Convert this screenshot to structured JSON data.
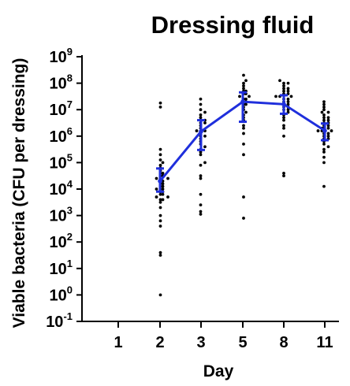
{
  "chart_data": {
    "type": "scatter",
    "title": "Dressing fluid",
    "xlabel": "Day",
    "ylabel": "Viable bacteria (CFU per dressing)",
    "y_scale": "log10",
    "ylim": [
      0.1,
      1000000000
    ],
    "y_ticks": [
      {
        "base": "10",
        "exp": "9",
        "value": 1000000000
      },
      {
        "base": "10",
        "exp": "8",
        "value": 100000000
      },
      {
        "base": "10",
        "exp": "7",
        "value": 10000000
      },
      {
        "base": "10",
        "exp": "6",
        "value": 1000000
      },
      {
        "base": "10",
        "exp": "5",
        "value": 100000
      },
      {
        "base": "10",
        "exp": "4",
        "value": 10000
      },
      {
        "base": "10",
        "exp": "3",
        "value": 1000
      },
      {
        "base": "10",
        "exp": "2",
        "value": 100
      },
      {
        "base": "10",
        "exp": "1",
        "value": 10
      },
      {
        "base": "10",
        "exp": "0",
        "value": 1
      },
      {
        "base": "10",
        "exp": "-1",
        "value": 0.1
      }
    ],
    "categories": [
      "1",
      "2",
      "3",
      "5",
      "8",
      "11"
    ],
    "grid": false,
    "legend": "none",
    "point_color": "#000000",
    "summary_color": "#1f2fdc",
    "points": [
      [],
      [
        0,
        1.6,
        2.6,
        2.8,
        1.5,
        3.0,
        3.3,
        3.5,
        3.6,
        3.6,
        3.7,
        3.7,
        3.8,
        3.8,
        3.9,
        3.9,
        4.0,
        4.0,
        4.0,
        4.1,
        4.1,
        4.2,
        4.2,
        4.3,
        4.3,
        4.4,
        4.4,
        4.5,
        4.5,
        4.6,
        4.6,
        4.7,
        4.8,
        4.9,
        5.0,
        5.1,
        5.3,
        5.5,
        7.1,
        7.25
      ],
      [
        3.05,
        3.15,
        3.4,
        3.8,
        4.4,
        4.5,
        4.9,
        5.0,
        5.3,
        5.4,
        5.5,
        5.6,
        5.7,
        5.8,
        5.9,
        6.0,
        6.0,
        6.1,
        6.2,
        6.2,
        6.3,
        6.4,
        6.5,
        6.5,
        6.6,
        6.6,
        6.7,
        6.8,
        6.9,
        7.0,
        7.2,
        7.4
      ],
      [
        2.9,
        3.7,
        5.3,
        5.7,
        6.1,
        6.3,
        6.4,
        6.6,
        6.7,
        6.8,
        6.9,
        7.0,
        7.1,
        7.2,
        7.2,
        7.3,
        7.3,
        7.4,
        7.4,
        7.5,
        7.5,
        7.6,
        7.6,
        7.7,
        7.7,
        7.8,
        7.9,
        8.0,
        8.1,
        8.3
      ],
      [
        4.5,
        4.6,
        6.0,
        6.3,
        6.4,
        6.6,
        6.7,
        6.8,
        6.9,
        7.0,
        7.0,
        7.1,
        7.1,
        7.2,
        7.2,
        7.3,
        7.3,
        7.4,
        7.4,
        7.5,
        7.5,
        7.5,
        7.6,
        7.6,
        7.7,
        7.7,
        7.8,
        7.8,
        7.9,
        8.0,
        8.0,
        8.1
      ],
      [
        4.1,
        5.0,
        5.2,
        5.4,
        5.5,
        5.6,
        5.7,
        5.8,
        5.9,
        5.9,
        6.0,
        6.0,
        6.1,
        6.1,
        6.2,
        6.2,
        6.2,
        6.3,
        6.3,
        6.3,
        6.4,
        6.4,
        6.5,
        6.5,
        6.6,
        6.6,
        6.7,
        6.7,
        6.8,
        6.9,
        6.9,
        7.0,
        7.1,
        7.2,
        7.3
      ]
    ],
    "median": [
      null,
      20000,
      1500000,
      20000000,
      16000000,
      1600000
    ],
    "error_low": [
      null,
      8000,
      300000,
      3500000,
      7000000,
      700000
    ],
    "error_high": [
      null,
      60000,
      4000000,
      45000000,
      35000000,
      3000000
    ]
  }
}
